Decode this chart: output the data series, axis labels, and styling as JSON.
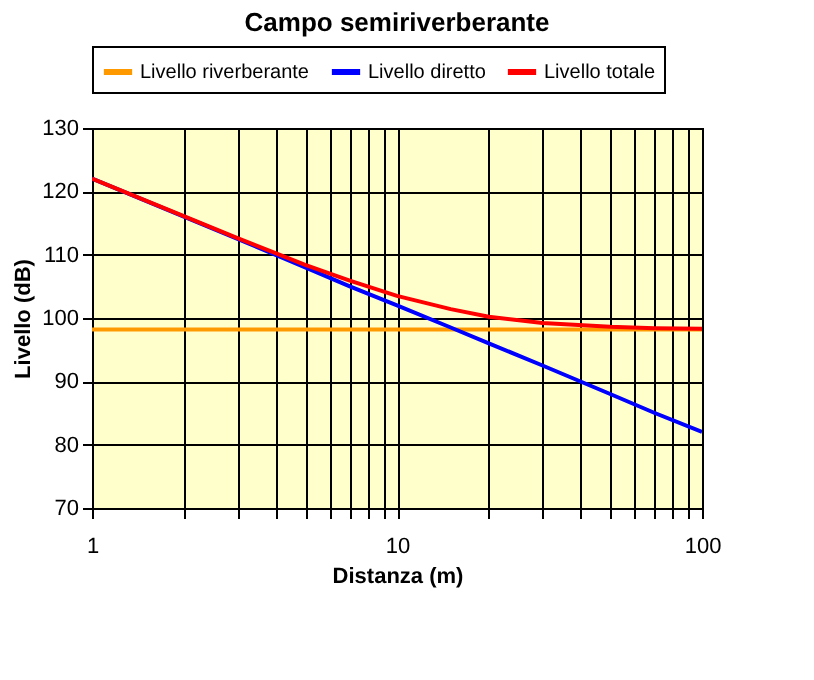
{
  "chart_data": {
    "type": "line",
    "title": "Campo semiriverberante",
    "xlabel": "Distanza (m)",
    "ylabel": "Livello (dB)",
    "x": [
      1,
      2,
      3,
      5,
      7,
      10,
      15,
      20,
      30,
      50,
      70,
      100
    ],
    "series": [
      {
        "name": "Livello riverberante",
        "color": "#ff9900",
        "values": [
          98.2,
          98.2,
          98.2,
          98.2,
          98.2,
          98.2,
          98.2,
          98.2,
          98.2,
          98.2,
          98.2,
          98.2
        ]
      },
      {
        "name": "Livello diretto",
        "color": "#0000ff",
        "values": [
          122,
          116,
          112.5,
          108,
          105,
          102,
          98.5,
          96,
          92.5,
          88,
          85,
          82
        ]
      },
      {
        "name": "Livello totale",
        "color": "#ff0000",
        "values": [
          122,
          116.1,
          112.6,
          108.4,
          105.9,
          103.5,
          101.4,
          100.2,
          99.2,
          98.6,
          98.4,
          98.3
        ]
      }
    ],
    "log": "x",
    "xlim": [
      1,
      100
    ],
    "xticks": [
      1,
      {
        "value": 2,
        "label": null
      },
      {
        "value": 3,
        "label": null
      },
      {
        "value": 4,
        "label": null
      },
      {
        "value": 5,
        "label": null
      },
      {
        "value": 6,
        "label": null
      },
      {
        "value": 7,
        "label": null
      },
      {
        "value": 8,
        "label": null
      },
      {
        "value": 9,
        "label": null
      },
      10,
      {
        "value": 20,
        "label": null
      },
      {
        "value": 30,
        "label": null
      },
      {
        "value": 40,
        "label": null
      },
      {
        "value": 50,
        "label": null
      },
      {
        "value": 60,
        "label": null
      },
      {
        "value": 70,
        "label": null
      },
      {
        "value": 80,
        "label": null
      },
      {
        "value": 90,
        "label": null
      },
      100
    ],
    "ylim": [
      70,
      130
    ],
    "yticks": [
      70,
      80,
      90,
      100,
      110,
      120,
      130
    ],
    "grid": true,
    "legend": "top",
    "marker": "none",
    "line_style": "solid"
  }
}
